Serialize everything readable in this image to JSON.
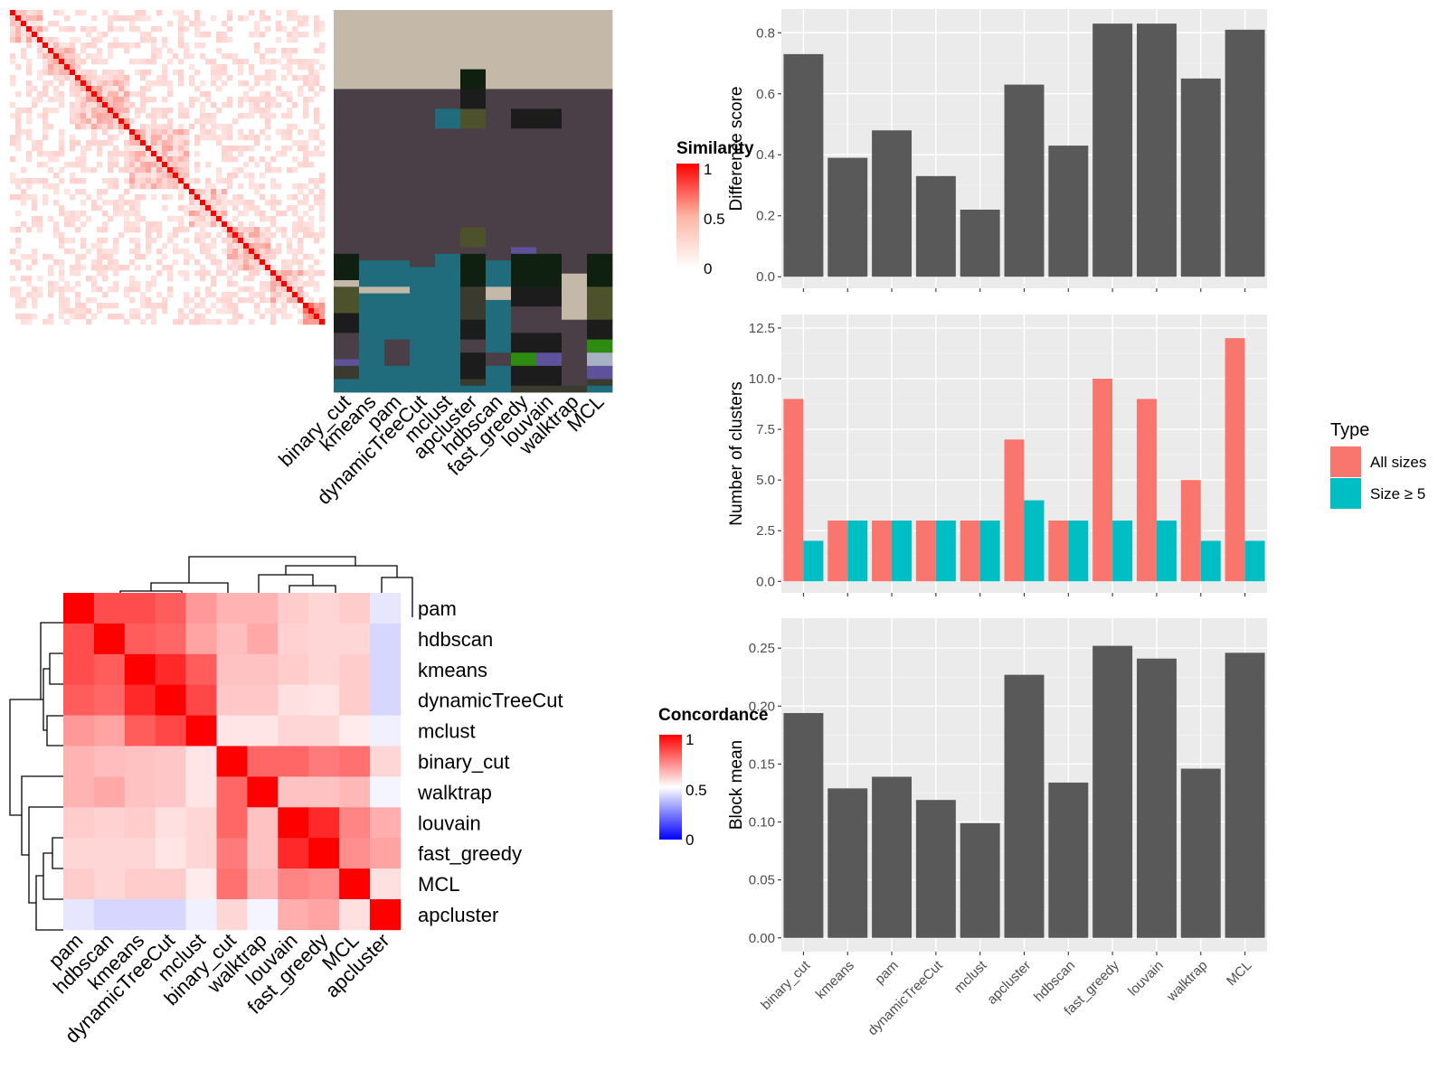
{
  "methods": [
    "binary_cut",
    "kmeans",
    "pam",
    "dynamicTreeCut",
    "mclust",
    "apcluster",
    "hdbscan",
    "fast_greedy",
    "louvain",
    "walktrap",
    "MCL"
  ],
  "colors": {
    "panel_bg": "#ebebeb",
    "grid": "#ffffff",
    "bar_dark": "#595959",
    "all_sizes": "#f8766d",
    "size_ge_5": "#00bfc4",
    "heat_high": "#ff0000",
    "heat_mid": "#ffffff",
    "heat_low": "#0000ff"
  },
  "similarity_heatmap": {
    "legend_title": "Similarity",
    "legend_ticks": [
      "1",
      "0.5",
      "0"
    ],
    "n_terms": 58
  },
  "cluster_panel": {
    "columns": [
      "binary_cut",
      "kmeans",
      "pam",
      "dynamicTreeCut",
      "mclust",
      "apcluster",
      "hdbscan",
      "fast_greedy",
      "louvain",
      "walktrap",
      "MCL"
    ]
  },
  "concordance_heatmap": {
    "legend_title": "Concordance",
    "legend_ticks": [
      "1",
      "0.5",
      "0"
    ],
    "order": [
      "pam",
      "hdbscan",
      "kmeans",
      "dynamicTreeCut",
      "mclust",
      "binary_cut",
      "walktrap",
      "louvain",
      "fast_greedy",
      "MCL",
      "apcluster"
    ],
    "matrix": [
      [
        1.0,
        0.85,
        0.85,
        0.82,
        0.7,
        0.65,
        0.65,
        0.6,
        0.58,
        0.6,
        0.45
      ],
      [
        0.85,
        1.0,
        0.82,
        0.8,
        0.68,
        0.63,
        0.67,
        0.59,
        0.58,
        0.58,
        0.42
      ],
      [
        0.85,
        0.82,
        1.0,
        0.92,
        0.82,
        0.62,
        0.62,
        0.6,
        0.58,
        0.6,
        0.42
      ],
      [
        0.82,
        0.8,
        0.92,
        1.0,
        0.86,
        0.61,
        0.61,
        0.56,
        0.55,
        0.6,
        0.42
      ],
      [
        0.7,
        0.68,
        0.82,
        0.86,
        1.0,
        0.55,
        0.55,
        0.58,
        0.58,
        0.54,
        0.47
      ],
      [
        0.65,
        0.63,
        0.62,
        0.61,
        0.55,
        1.0,
        0.8,
        0.8,
        0.76,
        0.78,
        0.58
      ],
      [
        0.65,
        0.67,
        0.62,
        0.61,
        0.55,
        0.8,
        1.0,
        0.62,
        0.62,
        0.64,
        0.48
      ],
      [
        0.6,
        0.59,
        0.6,
        0.56,
        0.58,
        0.8,
        0.62,
        1.0,
        0.92,
        0.74,
        0.66
      ],
      [
        0.58,
        0.58,
        0.58,
        0.55,
        0.58,
        0.76,
        0.62,
        0.92,
        1.0,
        0.72,
        0.68
      ],
      [
        0.6,
        0.58,
        0.6,
        0.6,
        0.54,
        0.78,
        0.64,
        0.74,
        0.72,
        1.0,
        0.56
      ],
      [
        0.45,
        0.42,
        0.42,
        0.42,
        0.47,
        0.58,
        0.48,
        0.66,
        0.68,
        0.56,
        1.0
      ]
    ]
  },
  "chart_data": [
    {
      "type": "bar",
      "categories": [
        "binary_cut",
        "kmeans",
        "pam",
        "dynamicTreeCut",
        "mclust",
        "apcluster",
        "hdbscan",
        "fast_greedy",
        "louvain",
        "walktrap",
        "MCL"
      ],
      "values": [
        0.73,
        0.39,
        0.48,
        0.33,
        0.22,
        0.63,
        0.43,
        0.83,
        0.83,
        0.65,
        0.81
      ],
      "xlabel": "",
      "ylabel": "Difference score",
      "ylim": [
        0,
        0.84
      ],
      "yticks": [
        "0.0",
        "0.2",
        "0.4",
        "0.6",
        "0.8"
      ],
      "grid": true
    },
    {
      "type": "bar",
      "categories": [
        "binary_cut",
        "kmeans",
        "pam",
        "dynamicTreeCut",
        "mclust",
        "apcluster",
        "hdbscan",
        "fast_greedy",
        "louvain",
        "walktrap",
        "MCL"
      ],
      "series": [
        {
          "name": "All sizes",
          "values": [
            9,
            3,
            3,
            3,
            3,
            7,
            3,
            10,
            9,
            5,
            12
          ]
        },
        {
          "name": "Size ≥ 5",
          "values": [
            2,
            3,
            3,
            3,
            3,
            4,
            3,
            3,
            3,
            2,
            2
          ]
        }
      ],
      "xlabel": "",
      "ylabel": "Number of clusters",
      "ylim": [
        0,
        12.6
      ],
      "yticks": [
        "0.0",
        "2.5",
        "5.0",
        "7.5",
        "10.0",
        "12.5"
      ],
      "legend_title": "Type",
      "legend_position": "right",
      "grid": true
    },
    {
      "type": "bar",
      "categories": [
        "binary_cut",
        "kmeans",
        "pam",
        "dynamicTreeCut",
        "mclust",
        "apcluster",
        "hdbscan",
        "fast_greedy",
        "louvain",
        "walktrap",
        "MCL"
      ],
      "values": [
        0.194,
        0.129,
        0.139,
        0.119,
        0.099,
        0.227,
        0.134,
        0.252,
        0.241,
        0.146,
        0.246
      ],
      "xlabel": "",
      "ylabel": "Block mean",
      "ylim": [
        0,
        0.264
      ],
      "yticks": [
        "0.00",
        "0.05",
        "0.10",
        "0.15",
        "0.20",
        "0.25"
      ],
      "grid": true
    }
  ]
}
